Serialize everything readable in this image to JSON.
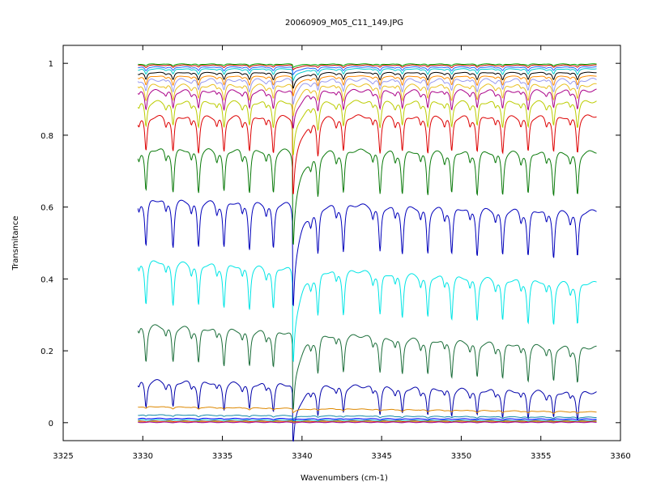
{
  "chart_data": {
    "type": "line",
    "title": "20060909_M05_C11_149.JPG",
    "xlabel": "Wavenumbers (cm-1)",
    "ylabel": "Transmitance",
    "xlim": [
      3325,
      3360
    ],
    "ylim": [
      -0.05,
      1.05
    ],
    "x_ticks": [
      3325,
      3330,
      3335,
      3340,
      3345,
      3350,
      3355,
      3360
    ],
    "x_tick_labels": [
      "3325",
      "3330",
      "3335",
      "3340",
      "3345",
      "3350",
      "3355",
      "3360"
    ],
    "y_ticks": [
      0,
      0.2,
      0.4,
      0.6,
      0.8,
      1
    ],
    "y_tick_labels": [
      "0",
      "0.2",
      "0.4",
      "0.6",
      "0.8",
      "1"
    ],
    "grid": false,
    "legend": "none",
    "x_range": [
      3329.7,
      3358.5
    ],
    "line_positions": [
      3330.2,
      3331.9,
      3333.5,
      3335.1,
      3336.7,
      3338.2,
      3341.0,
      3342.6,
      3344.9,
      3346.3,
      3347.9,
      3349.4,
      3351.0,
      3352.6,
      3354.2,
      3355.8,
      3357.3
    ],
    "q_branch": 3339.45,
    "series": [
      {
        "color": "#0000aa",
        "start": 0.12,
        "end": 0.085,
        "depth": 0.15
      },
      {
        "color": "#1b6e3a",
        "start": 0.275,
        "end": 0.21,
        "depth": 0.2
      },
      {
        "color": "#00e5e5",
        "start": 0.455,
        "end": 0.39,
        "depth": 0.24
      },
      {
        "color": "#0000bb",
        "start": 0.625,
        "end": 0.59,
        "depth": 0.26
      },
      {
        "color": "#0a7a0a",
        "start": 0.765,
        "end": 0.755,
        "depth": 0.24
      },
      {
        "color": "#dd0000",
        "start": 0.855,
        "end": 0.855,
        "depth": 0.2
      },
      {
        "color": "#bbcc00",
        "start": 0.895,
        "end": 0.895,
        "depth": 0.14
      },
      {
        "color": "#aa0088",
        "start": 0.925,
        "end": 0.925,
        "depth": 0.1
      },
      {
        "color": "#e8c020",
        "start": 0.94,
        "end": 0.94,
        "depth": 0.08
      },
      {
        "color": "#9999ee",
        "start": 0.955,
        "end": 0.955,
        "depth": 0.06
      },
      {
        "color": "#ff8c00",
        "start": 0.965,
        "end": 0.965,
        "depth": 0.05
      },
      {
        "color": "#000000",
        "start": 0.975,
        "end": 0.975,
        "depth": 0.04
      },
      {
        "color": "#00cccc",
        "start": 0.985,
        "end": 0.985,
        "depth": 0.03
      },
      {
        "color": "#2266ff",
        "start": 0.99,
        "end": 0.99,
        "depth": 0.02
      },
      {
        "color": "#cc0000",
        "start": 0.995,
        "end": 0.995,
        "depth": 0.012
      },
      {
        "color": "#00aa00",
        "start": 0.998,
        "end": 0.998,
        "depth": 0.008
      },
      {
        "color": "#dd8800",
        "start": 0.045,
        "end": 0.03,
        "depth": 0.01
      },
      {
        "color": "#1188aa",
        "start": 0.022,
        "end": 0.015,
        "depth": 0.008
      },
      {
        "color": "#0000ff",
        "start": 0.012,
        "end": 0.01,
        "depth": 0.004
      },
      {
        "color": "#00bbbb",
        "start": 0.008,
        "end": 0.006,
        "depth": 0.003
      },
      {
        "color": "#ee2200",
        "start": 0.004,
        "end": 0.004,
        "depth": 0.002
      },
      {
        "color": "#99cc00",
        "start": 0.002,
        "end": 0.002,
        "depth": 0.001
      },
      {
        "color": "#aa00aa",
        "start": 0.001,
        "end": 0.001,
        "depth": 0.001
      }
    ]
  }
}
